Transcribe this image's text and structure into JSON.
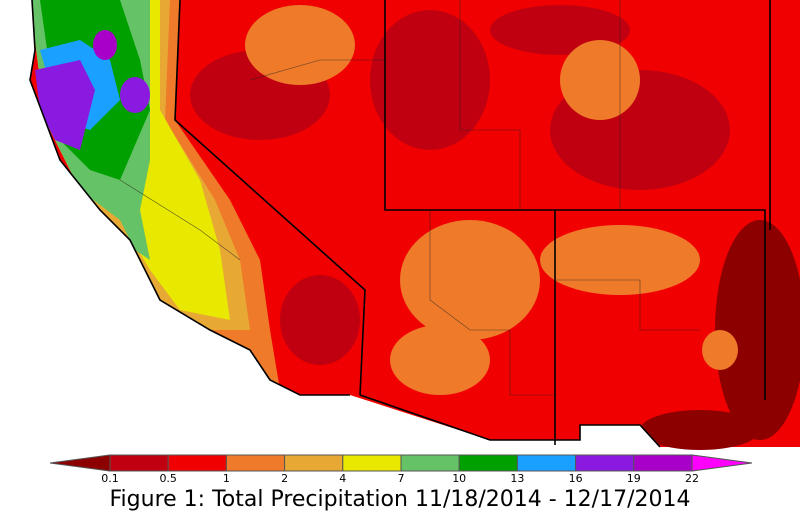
{
  "legend": {
    "ticks": [
      0.1,
      0.5,
      1,
      2,
      4,
      7,
      10,
      13,
      16,
      19,
      22
    ],
    "colors": [
      "#8c0000",
      "#c00010",
      "#f00000",
      "#ee7a2a",
      "#e8a834",
      "#e8e800",
      "#66c266",
      "#00a000",
      "#1aa0ff",
      "#8a1ae0",
      "#a800c8",
      "#ff00ff"
    ]
  },
  "caption": "Figure 1: Total Precipitation 11/18/2014 - 12/17/2014"
}
